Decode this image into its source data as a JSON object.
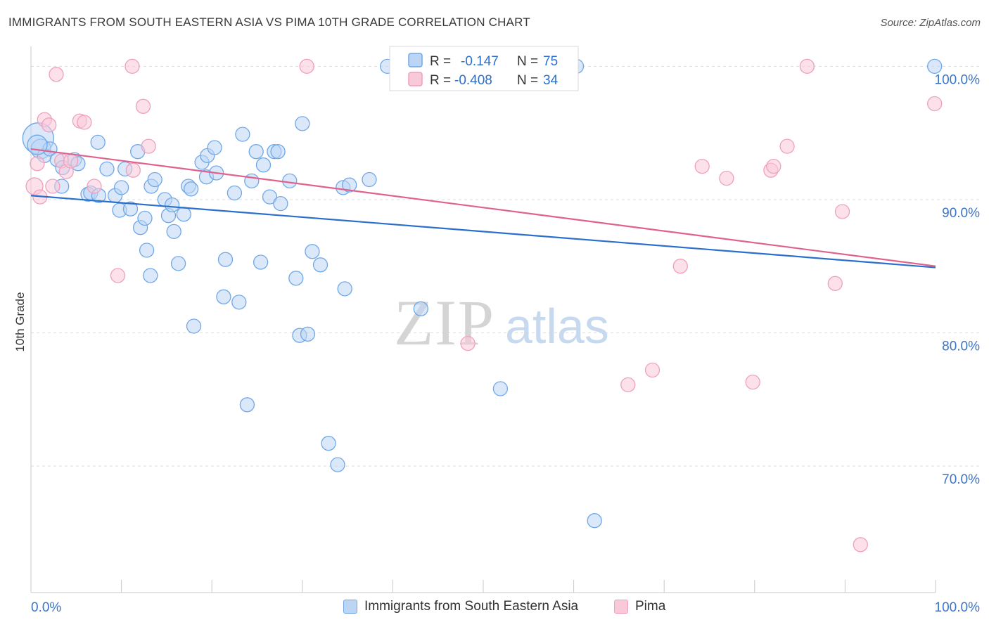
{
  "title": "IMMIGRANTS FROM SOUTH EASTERN ASIA VS PIMA 10TH GRADE CORRELATION CHART",
  "source": "Source: ZipAtlas.com",
  "watermark": {
    "part1": "ZIP",
    "part2": "atlas"
  },
  "chart_data": {
    "type": "scatter",
    "title": "IMMIGRANTS FROM SOUTH EASTERN ASIA VS PIMA 10TH GRADE CORRELATION CHART",
    "xlabel": "",
    "ylabel": "10th Grade",
    "xlim": [
      0,
      100
    ],
    "ylim": [
      60.5,
      101.5
    ],
    "x_tick_labels": [
      "0.0%",
      "100.0%"
    ],
    "y_ticks": [
      {
        "value": 100,
        "label": "100.0%"
      },
      {
        "value": 90,
        "label": "90.0%"
      },
      {
        "value": 80,
        "label": "80.0%"
      },
      {
        "value": 70,
        "label": "70.0%"
      }
    ],
    "grid": "horizontal dashed",
    "legend_position": "top-center",
    "stats": [
      {
        "r_label": "R =",
        "r_value": "-0.147",
        "n_label": "N =",
        "n_value": "75"
      },
      {
        "r_label": "R =",
        "r_value": "-0.408",
        "n_label": "N =",
        "n_value": "34"
      }
    ],
    "series": [
      {
        "name": "Immigrants from South Eastern Asia",
        "color": "#6fa8e8",
        "fill": "#bcd5f5",
        "trend": {
          "x": [
            0,
            100
          ],
          "y": [
            90.3,
            84.9
          ],
          "color": "#2b6fcc"
        },
        "points": [
          [
            0.8,
            94.6,
            22
          ],
          [
            1.1,
            93.8,
            14
          ],
          [
            1.5,
            93.3,
            10
          ],
          [
            2.1,
            93.8,
            10
          ],
          [
            2.9,
            93.0,
            10
          ],
          [
            3.5,
            92.4,
            10
          ],
          [
            3.4,
            91.0,
            10
          ],
          [
            4.8,
            93.0,
            10
          ],
          [
            5.2,
            92.7,
            10
          ],
          [
            6.3,
            90.4,
            10
          ],
          [
            6.6,
            90.5,
            10
          ],
          [
            7.5,
            90.3,
            10
          ],
          [
            8.4,
            92.3,
            10
          ],
          [
            9.3,
            90.3,
            10
          ],
          [
            10.0,
            90.9,
            10
          ],
          [
            9.8,
            89.2,
            10
          ],
          [
            10.4,
            92.3,
            10
          ],
          [
            11.0,
            89.3,
            10
          ],
          [
            12.1,
            87.9,
            10
          ],
          [
            12.6,
            88.6,
            10
          ],
          [
            12.8,
            86.2,
            10
          ],
          [
            13.3,
            91.0,
            10
          ],
          [
            13.2,
            84.3,
            10
          ],
          [
            13.7,
            91.5,
            10
          ],
          [
            14.8,
            90.0,
            10
          ],
          [
            15.2,
            88.8,
            10
          ],
          [
            15.6,
            89.6,
            10
          ],
          [
            15.8,
            87.6,
            10
          ],
          [
            16.3,
            85.2,
            10
          ],
          [
            16.9,
            88.9,
            10
          ],
          [
            17.4,
            91.0,
            10
          ],
          [
            17.7,
            90.8,
            10
          ],
          [
            18.0,
            80.5,
            10
          ],
          [
            18.9,
            92.8,
            10
          ],
          [
            19.4,
            91.7,
            10
          ],
          [
            19.5,
            93.3,
            10
          ],
          [
            20.3,
            93.9,
            10
          ],
          [
            20.5,
            92.0,
            10
          ],
          [
            21.3,
            82.7,
            10
          ],
          [
            21.5,
            85.5,
            10
          ],
          [
            22.5,
            90.5,
            10
          ],
          [
            23.0,
            82.3,
            10
          ],
          [
            23.4,
            94.9,
            10
          ],
          [
            23.9,
            74.6,
            10
          ],
          [
            24.4,
            91.4,
            10
          ],
          [
            24.9,
            93.6,
            10
          ],
          [
            25.4,
            85.3,
            10
          ],
          [
            25.7,
            92.6,
            10
          ],
          [
            26.4,
            90.2,
            10
          ],
          [
            26.9,
            93.6,
            10
          ],
          [
            27.3,
            93.6,
            10
          ],
          [
            27.6,
            89.7,
            10
          ],
          [
            28.6,
            91.4,
            10
          ],
          [
            29.3,
            84.1,
            10
          ],
          [
            29.7,
            79.8,
            10
          ],
          [
            30.0,
            95.7,
            10
          ],
          [
            30.6,
            79.9,
            10
          ],
          [
            31.1,
            86.1,
            10
          ],
          [
            32.0,
            85.1,
            10
          ],
          [
            32.9,
            71.7,
            10
          ],
          [
            33.9,
            70.1,
            10
          ],
          [
            34.5,
            90.9,
            10
          ],
          [
            34.7,
            83.3,
            10
          ],
          [
            35.2,
            91.1,
            10
          ],
          [
            37.4,
            91.5,
            10
          ],
          [
            39.4,
            100.0,
            10
          ],
          [
            43.1,
            81.8,
            10
          ],
          [
            51.9,
            75.8,
            10
          ],
          [
            56.1,
            100.0,
            10
          ],
          [
            60.3,
            100.0,
            10
          ],
          [
            62.3,
            65.9,
            10
          ],
          [
            99.9,
            100.0,
            10
          ],
          [
            0.7,
            94.1,
            14
          ],
          [
            7.4,
            94.3,
            10
          ],
          [
            11.8,
            93.6,
            10
          ]
        ]
      },
      {
        "name": "Pima",
        "color": "#f0a0bc",
        "fill": "#f9c9d9",
        "trend": {
          "x": [
            0,
            100
          ],
          "y": [
            93.8,
            85.0
          ],
          "color": "#e0628c"
        },
        "points": [
          [
            0.4,
            91.0,
            12
          ],
          [
            0.7,
            92.7,
            10
          ],
          [
            1.0,
            90.2,
            10
          ],
          [
            1.5,
            96.0,
            10
          ],
          [
            2.0,
            95.6,
            10
          ],
          [
            2.4,
            91.0,
            10
          ],
          [
            2.8,
            99.4,
            10
          ],
          [
            3.4,
            92.9,
            10
          ],
          [
            3.9,
            92.1,
            10
          ],
          [
            4.4,
            92.9,
            10
          ],
          [
            5.4,
            95.9,
            10
          ],
          [
            5.9,
            95.8,
            10
          ],
          [
            7.0,
            91.0,
            10
          ],
          [
            9.6,
            84.3,
            10
          ],
          [
            11.2,
            100.0,
            10
          ],
          [
            11.3,
            92.2,
            10
          ],
          [
            12.4,
            97.0,
            10
          ],
          [
            13.0,
            94.0,
            10
          ],
          [
            30.5,
            100.0,
            10
          ],
          [
            48.3,
            79.2,
            10
          ],
          [
            66.0,
            76.1,
            10
          ],
          [
            68.7,
            77.2,
            10
          ],
          [
            71.8,
            85.0,
            10
          ],
          [
            74.2,
            92.5,
            10
          ],
          [
            76.9,
            91.6,
            10
          ],
          [
            79.8,
            76.3,
            10
          ],
          [
            81.8,
            92.2,
            10
          ],
          [
            82.1,
            92.5,
            10
          ],
          [
            83.6,
            94.0,
            10
          ],
          [
            85.8,
            100.0,
            10
          ],
          [
            88.9,
            83.7,
            10
          ],
          [
            89.7,
            89.1,
            10
          ],
          [
            91.7,
            64.1,
            10
          ],
          [
            99.9,
            97.2,
            10
          ]
        ]
      }
    ]
  },
  "legend_bottom": [
    {
      "label": "Immigrants from South Eastern Asia",
      "color": "#bcd5f5",
      "border": "#6fa8e8"
    },
    {
      "label": "Pima",
      "color": "#f9c9d9",
      "border": "#f0a0bc"
    }
  ]
}
